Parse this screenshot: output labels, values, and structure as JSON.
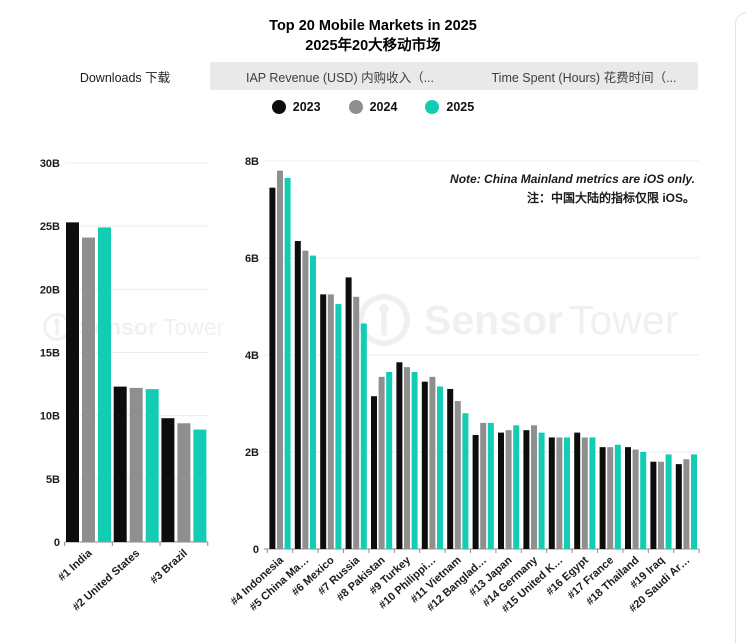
{
  "page": {
    "title_en": "Top 20 Mobile Markets in 2025",
    "title_zh": "2025年20大移动市场"
  },
  "tabs": [
    {
      "label": "Downloads 下载",
      "active": true
    },
    {
      "label": "IAP Revenue (USD) 内购收入（...",
      "active": false
    },
    {
      "label": "Time Spent (Hours) 花费时间（...",
      "active": false
    }
  ],
  "legend": {
    "items": [
      {
        "label": "2023",
        "color": "#0d0d0d"
      },
      {
        "label": "2024",
        "color": "#8f8f8f"
      },
      {
        "label": "2025",
        "color": "#12cdb4"
      }
    ]
  },
  "note": {
    "line1": "Note: China Mainland metrics are iOS only.",
    "line2": "注：中国大陆的指标仅限 iOS。"
  },
  "watermark": {
    "brand_bold": "Sensor",
    "brand_regular": "Tower"
  },
  "chart_data": [
    {
      "type": "bar",
      "title": "Downloads - Top 3 markets (billions)",
      "categories": [
        "#1 India",
        "#2 United States",
        "#3 Brazil"
      ],
      "series": [
        {
          "name": "2023",
          "color": "#0d0d0d",
          "values": [
            25.3,
            12.3,
            9.8
          ]
        },
        {
          "name": "2024",
          "color": "#8f8f8f",
          "values": [
            24.1,
            12.2,
            9.4
          ]
        },
        {
          "name": "2025",
          "color": "#12cdb4",
          "values": [
            24.9,
            12.1,
            8.9
          ]
        }
      ],
      "xlabel": "",
      "ylabel": "",
      "ylim": [
        0,
        30
      ],
      "yticks": [
        {
          "value": 0,
          "label": "0"
        },
        {
          "value": 5,
          "label": "5B"
        },
        {
          "value": 10,
          "label": "10B"
        },
        {
          "value": 15,
          "label": "15B"
        },
        {
          "value": 20,
          "label": "20B"
        },
        {
          "value": 25,
          "label": "25B"
        },
        {
          "value": 30,
          "label": "30B"
        }
      ],
      "grid": true,
      "legend_position": "top"
    },
    {
      "type": "bar",
      "title": "Downloads - markets #4 to #20 (billions)",
      "categories": [
        "#4 Indonesia",
        "#5 China Ma…",
        "#6 Mexico",
        "#7 Russia",
        "#8 Pakistan",
        "#9 Turkey",
        "#10 Philippi…",
        "#11 Vietnam",
        "#12 Banglad…",
        "#13 Japan",
        "#14 Germany",
        "#15 United K…",
        "#16 Egypt",
        "#17 France",
        "#18 Thailand",
        "#19 Iraq",
        "#20 Saudi Ar…"
      ],
      "series": [
        {
          "name": "2023",
          "color": "#0d0d0d",
          "values": [
            7.45,
            6.35,
            5.25,
            5.6,
            3.15,
            3.85,
            3.45,
            3.3,
            2.35,
            2.4,
            2.45,
            2.3,
            2.4,
            2.1,
            2.1,
            1.8,
            1.75
          ]
        },
        {
          "name": "2024",
          "color": "#8f8f8f",
          "values": [
            7.8,
            6.15,
            5.25,
            5.2,
            3.55,
            3.75,
            3.55,
            3.05,
            2.6,
            2.45,
            2.55,
            2.3,
            2.3,
            2.1,
            2.05,
            1.8,
            1.85
          ]
        },
        {
          "name": "2025",
          "color": "#12cdb4",
          "values": [
            7.65,
            6.05,
            5.05,
            4.65,
            3.65,
            3.65,
            3.35,
            2.8,
            2.6,
            2.55,
            2.4,
            2.3,
            2.3,
            2.15,
            2.0,
            1.95,
            1.95
          ]
        }
      ],
      "xlabel": "",
      "ylabel": "",
      "ylim": [
        0,
        8
      ],
      "yticks": [
        {
          "value": 0,
          "label": "0"
        },
        {
          "value": 2,
          "label": "2B"
        },
        {
          "value": 4,
          "label": "4B"
        },
        {
          "value": 6,
          "label": "6B"
        },
        {
          "value": 8,
          "label": "8B"
        }
      ],
      "grid": true,
      "legend_position": "top"
    }
  ]
}
